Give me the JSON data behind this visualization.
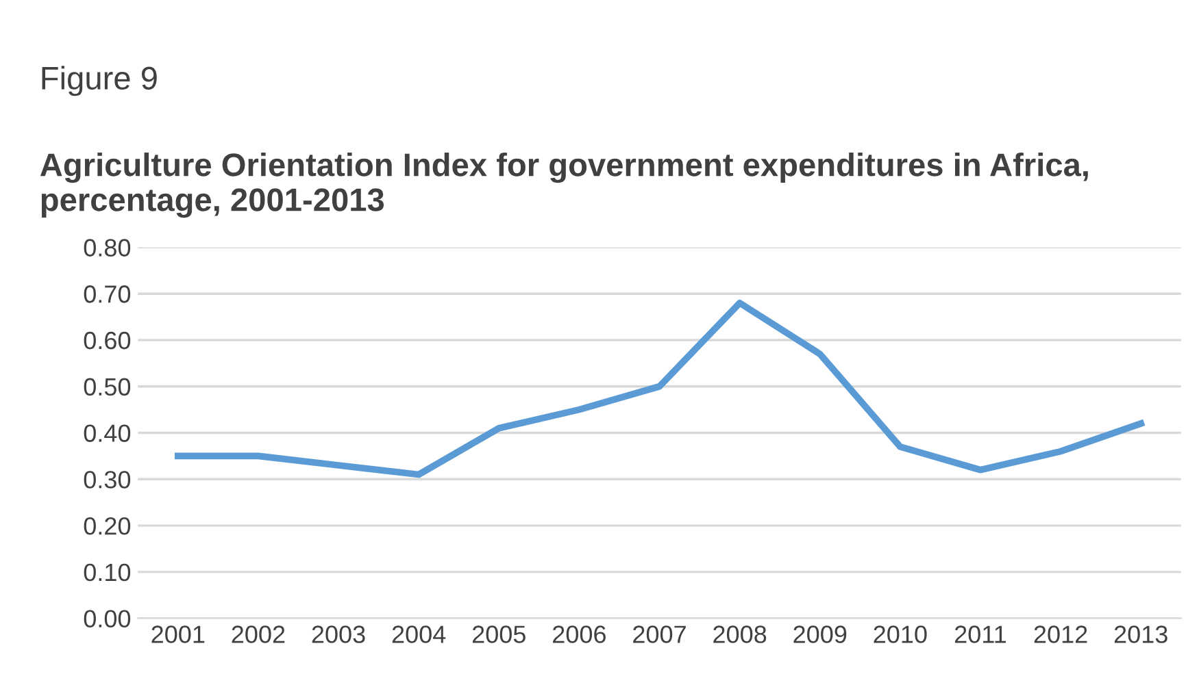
{
  "chart_data": {
    "type": "line",
    "title": "Figure 9",
    "subtitle": "Agriculture Orientation Index for government expenditures in Africa, percentage, 2001-2013",
    "categories": [
      "2001",
      "2002",
      "2003",
      "2004",
      "2005",
      "2006",
      "2007",
      "2008",
      "2009",
      "2010",
      "2011",
      "2012",
      "2013"
    ],
    "series": [
      {
        "color": "#5b9bd5",
        "values": [
          0.35,
          0.35,
          0.33,
          0.31,
          0.41,
          0.45,
          0.5,
          0.68,
          0.57,
          0.37,
          0.32,
          0.36,
          0.42
        ]
      }
    ],
    "ylim": [
      0,
      0.8
    ],
    "yticks": [
      {
        "value": 0,
        "label": "0.00"
      },
      {
        "value": 0.1,
        "label": "0.10"
      },
      {
        "value": 0.2,
        "label": "0.20"
      },
      {
        "value": 0.3,
        "label": "0.30"
      },
      {
        "value": 0.4,
        "label": "0.40"
      },
      {
        "value": 0.5,
        "label": "0.50"
      },
      {
        "value": 0.6,
        "label": "0.60"
      },
      {
        "value": 0.7,
        "label": "0.70"
      },
      {
        "value": 0.8,
        "label": "0.80"
      }
    ],
    "grid": "y",
    "legend": false,
    "marker": "none",
    "line_style": "solid"
  }
}
